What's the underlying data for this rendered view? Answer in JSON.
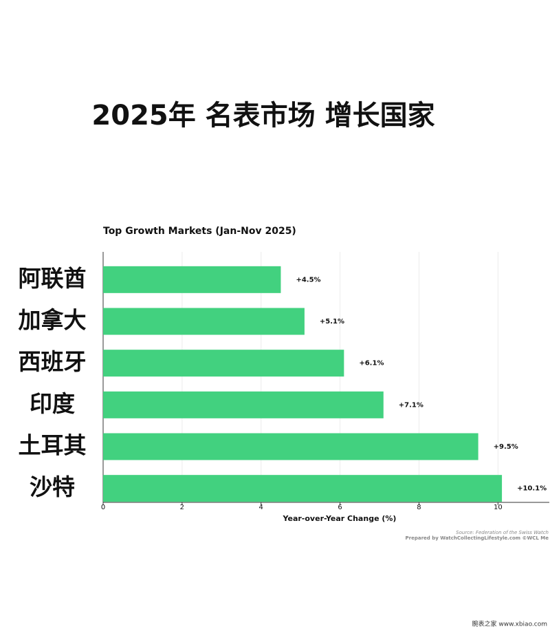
{
  "chart_data": {
    "type": "hbar",
    "page_title": "2025年 名表市场 增长国家",
    "title": "Top Growth Markets (Jan-Nov 2025)",
    "categories": [
      "阿联酋",
      "加拿大",
      "西班牙",
      "印度",
      "土耳其",
      "沙特"
    ],
    "values": [
      4.5,
      5.1,
      6.1,
      7.1,
      9.5,
      10.1
    ],
    "value_labels": [
      "+4.5%",
      "+5.1%",
      "+6.1%",
      "+7.1%",
      "+9.5%",
      "+10.1%"
    ],
    "color": "#42d17f",
    "xlim": [
      0,
      11.3
    ],
    "xticks": [
      0,
      2,
      4,
      6,
      8,
      10
    ],
    "grid": true,
    "x_label": "Year-over-Year Change (%)",
    "source": "Source: Federation of the Swiss Watch",
    "credit": "Prepared by WatchCollectingLifestyle.com ©WCL Me",
    "watermark": "腕表之家 www.xbiao.com"
  }
}
